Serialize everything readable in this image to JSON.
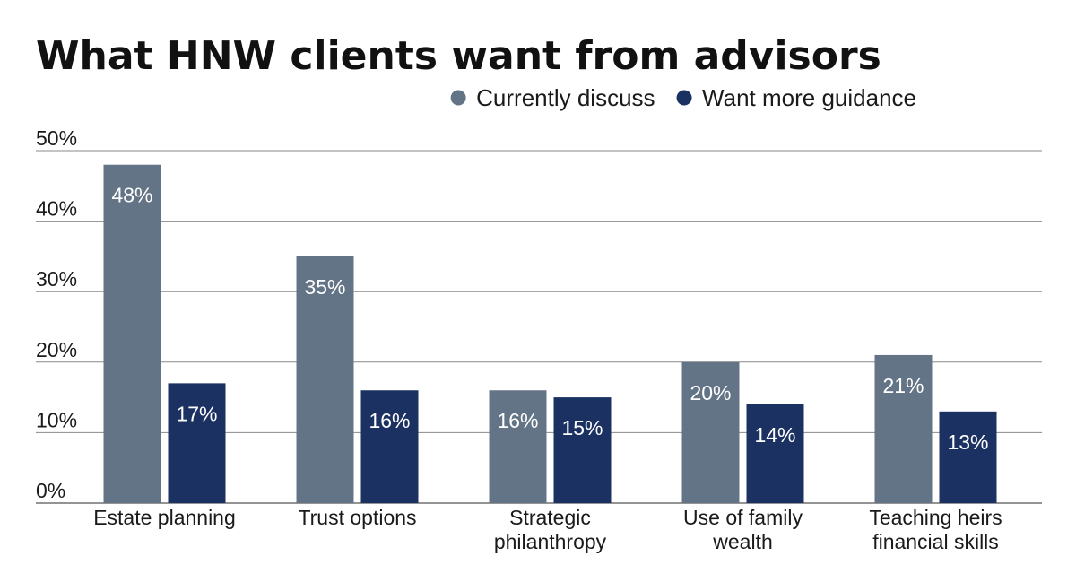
{
  "chart_data": {
    "type": "bar",
    "title": "What HNW clients want from advisors",
    "xlabel": "",
    "ylabel": "",
    "ylim": [
      0,
      50
    ],
    "yticks": [
      0,
      10,
      20,
      30,
      40,
      50
    ],
    "ytick_labels": [
      "0%",
      "10%",
      "20%",
      "30%",
      "40%",
      "50%"
    ],
    "grid": true,
    "legend_position": "top-right",
    "value_suffix": "%",
    "categories": [
      [
        "Estate planning"
      ],
      [
        "Trust options"
      ],
      [
        "Strategic",
        "philanthropy"
      ],
      [
        "Use of family",
        "wealth"
      ],
      [
        "Teaching heirs",
        "financial skills"
      ]
    ],
    "series": [
      {
        "name": "Currently discuss",
        "color": "#647487",
        "values": [
          48,
          35,
          16,
          20,
          21
        ]
      },
      {
        "name": "Want more guidance",
        "color": "#1b3162",
        "values": [
          17,
          16,
          15,
          14,
          13
        ]
      }
    ]
  }
}
